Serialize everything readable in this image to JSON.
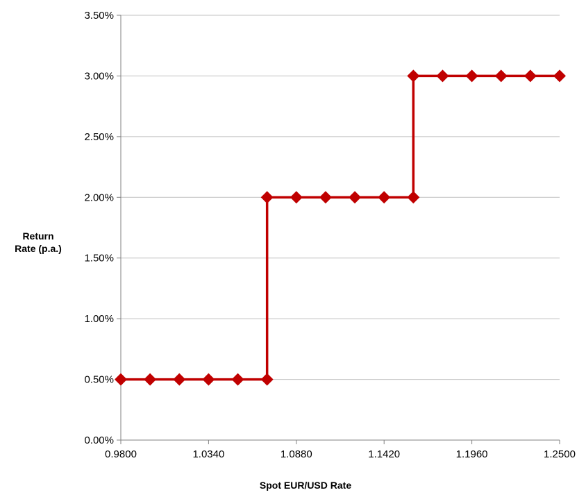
{
  "chart_data": {
    "type": "line",
    "title": "",
    "xlabel": "Spot EUR/USD  Rate",
    "ylabel_lines": [
      "Return",
      "Rate (p.a.)"
    ],
    "x_ticks": [
      "0.9800",
      "1.0340",
      "1.0880",
      "1.1420",
      "1.1960",
      "1.2500"
    ],
    "y_ticks": [
      "0.00%",
      "0.50%",
      "1.00%",
      "1.50%",
      "2.00%",
      "2.50%",
      "3.00%",
      "3.50%"
    ],
    "xlim": [
      0.98,
      1.25
    ],
    "ylim": [
      0,
      3.5
    ],
    "grid": "horizontal",
    "legend": "none",
    "series_color": "#c00000",
    "series": [
      {
        "marker": "diamond",
        "x": [
          0.98,
          0.998,
          1.016,
          1.034,
          1.052,
          1.07,
          1.07,
          1.088,
          1.106,
          1.124,
          1.142,
          1.16,
          1.16,
          1.178,
          1.196,
          1.214,
          1.232,
          1.25
        ],
        "y": [
          0.5,
          0.5,
          0.5,
          0.5,
          0.5,
          0.5,
          2.0,
          2.0,
          2.0,
          2.0,
          2.0,
          2.0,
          3.0,
          3.0,
          3.0,
          3.0,
          3.0,
          3.0
        ]
      }
    ]
  }
}
